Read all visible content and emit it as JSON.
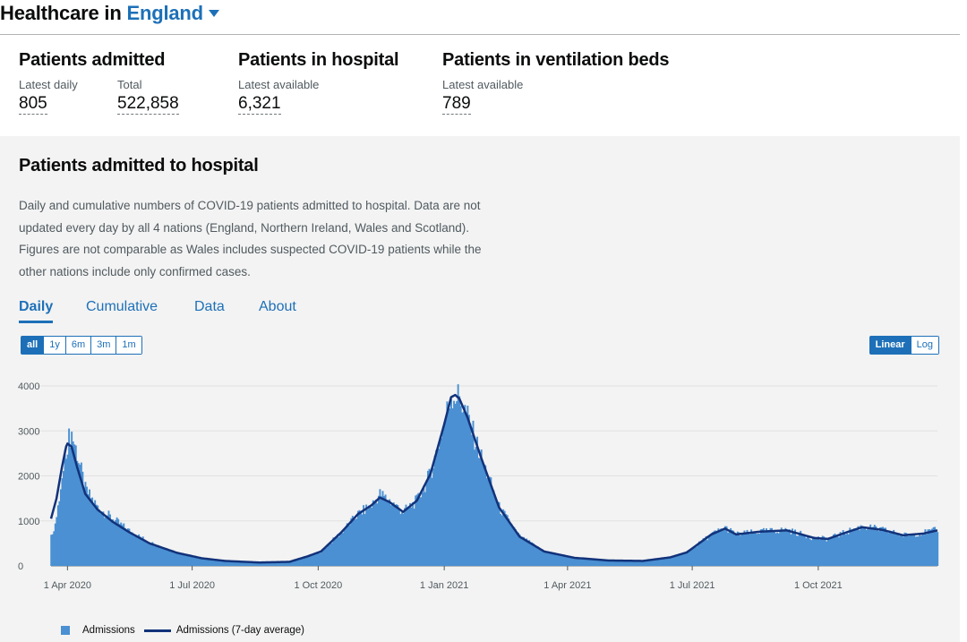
{
  "header": {
    "title_prefix": "Healthcare in",
    "area": "England"
  },
  "headlines": [
    {
      "title": "Patients admitted",
      "metrics": [
        {
          "label": "Latest daily",
          "value": "805"
        },
        {
          "label": "Total",
          "value": "522,858"
        }
      ]
    },
    {
      "title": "Patients in hospital",
      "metrics": [
        {
          "label": "Latest available",
          "value": "6,321"
        }
      ]
    },
    {
      "title": "Patients in ventilation beds",
      "metrics": [
        {
          "label": "Latest available",
          "value": "789"
        }
      ]
    }
  ],
  "card": {
    "title": "Patients admitted to hospital",
    "description": "Daily and cumulative numbers of COVID-19 patients admitted to hospital. Data are not updated every day by all 4 nations (England, Northern Ireland, Wales and Scotland). Figures are not comparable as Wales includes suspected COVID-19 patients while the other nations include only confirmed cases.",
    "tabs": [
      "Daily",
      "Cumulative",
      "Data",
      "About"
    ],
    "active_tab": "Daily",
    "time_ranges": [
      "all",
      "1y",
      "6m",
      "3m",
      "1m"
    ],
    "active_time_range": "all",
    "scales": [
      "Linear",
      "Log"
    ],
    "active_scale": "Linear"
  },
  "colors": {
    "accent": "#1d70b8",
    "bars": "#4a90d2",
    "line": "#12327a"
  },
  "chart_data": {
    "type": "bar",
    "title": "Patients admitted to hospital",
    "xlabel": "",
    "ylabel": "",
    "ylim": [
      0,
      4200
    ],
    "yticks": [
      0,
      1000,
      2000,
      3000,
      4000
    ],
    "xticks": [
      "1 Apr 2020",
      "1 Jul 2020",
      "1 Oct 2020",
      "1 Jan 2021",
      "1 Apr 2021",
      "1 Jul 2021",
      "1 Oct 2021"
    ],
    "xtick_day_index": [
      0,
      91,
      183,
      275,
      365,
      456,
      548
    ],
    "series": [
      {
        "name": "Admissions",
        "kind": "bar",
        "description": "Daily admissions, one bar per day from ~21 Mar 2020 to ~late Dec 2021",
        "anchors_day_value": [
          [
            -12,
            650
          ],
          [
            -8,
            1050
          ],
          [
            -4,
            1900
          ],
          [
            -1,
            2600
          ],
          [
            0,
            2750
          ],
          [
            3,
            2950
          ],
          [
            7,
            2500
          ],
          [
            13,
            1700
          ],
          [
            22,
            1300
          ],
          [
            33,
            1050
          ],
          [
            45,
            780
          ],
          [
            60,
            520
          ],
          [
            80,
            300
          ],
          [
            98,
            170
          ],
          [
            115,
            110
          ],
          [
            140,
            70
          ],
          [
            162,
            90
          ],
          [
            175,
            200
          ],
          [
            185,
            320
          ],
          [
            200,
            750
          ],
          [
            212,
            1150
          ],
          [
            222,
            1350
          ],
          [
            228,
            1600
          ],
          [
            235,
            1450
          ],
          [
            245,
            1200
          ],
          [
            255,
            1450
          ],
          [
            265,
            2050
          ],
          [
            275,
            3200
          ],
          [
            280,
            3800
          ],
          [
            286,
            3750
          ],
          [
            292,
            3300
          ],
          [
            302,
            2400
          ],
          [
            315,
            1300
          ],
          [
            330,
            650
          ],
          [
            348,
            320
          ],
          [
            370,
            180
          ],
          [
            395,
            120
          ],
          [
            420,
            110
          ],
          [
            440,
            190
          ],
          [
            452,
            300
          ],
          [
            470,
            700
          ],
          [
            480,
            850
          ],
          [
            488,
            700
          ],
          [
            505,
            760
          ],
          [
            525,
            800
          ],
          [
            545,
            620
          ],
          [
            555,
            600
          ],
          [
            570,
            770
          ],
          [
            580,
            880
          ],
          [
            595,
            800
          ],
          [
            610,
            680
          ],
          [
            625,
            740
          ],
          [
            635,
            800
          ]
        ]
      },
      {
        "name": "Admissions (7-day average)",
        "kind": "line",
        "anchors_day_value": [
          [
            -12,
            1050
          ],
          [
            -8,
            1500
          ],
          [
            -4,
            2200
          ],
          [
            -1,
            2650
          ],
          [
            0,
            2720
          ],
          [
            3,
            2650
          ],
          [
            7,
            2200
          ],
          [
            13,
            1600
          ],
          [
            22,
            1250
          ],
          [
            33,
            980
          ],
          [
            45,
            750
          ],
          [
            60,
            500
          ],
          [
            80,
            290
          ],
          [
            98,
            170
          ],
          [
            115,
            110
          ],
          [
            140,
            75
          ],
          [
            162,
            90
          ],
          [
            175,
            210
          ],
          [
            185,
            320
          ],
          [
            200,
            750
          ],
          [
            212,
            1150
          ],
          [
            222,
            1350
          ],
          [
            228,
            1520
          ],
          [
            235,
            1420
          ],
          [
            245,
            1200
          ],
          [
            255,
            1450
          ],
          [
            265,
            2050
          ],
          [
            275,
            3150
          ],
          [
            280,
            3750
          ],
          [
            283,
            3800
          ],
          [
            286,
            3720
          ],
          [
            292,
            3300
          ],
          [
            302,
            2400
          ],
          [
            315,
            1300
          ],
          [
            330,
            650
          ],
          [
            348,
            320
          ],
          [
            370,
            180
          ],
          [
            395,
            120
          ],
          [
            420,
            110
          ],
          [
            440,
            190
          ],
          [
            452,
            300
          ],
          [
            470,
            700
          ],
          [
            480,
            830
          ],
          [
            488,
            700
          ],
          [
            505,
            760
          ],
          [
            525,
            790
          ],
          [
            545,
            620
          ],
          [
            555,
            600
          ],
          [
            570,
            760
          ],
          [
            580,
            860
          ],
          [
            595,
            800
          ],
          [
            610,
            680
          ],
          [
            625,
            720
          ],
          [
            635,
            790
          ]
        ]
      }
    ],
    "legend": [
      "Admissions",
      "Admissions (7-day average)"
    ],
    "legend_position": "bottom-left",
    "grid": true
  }
}
